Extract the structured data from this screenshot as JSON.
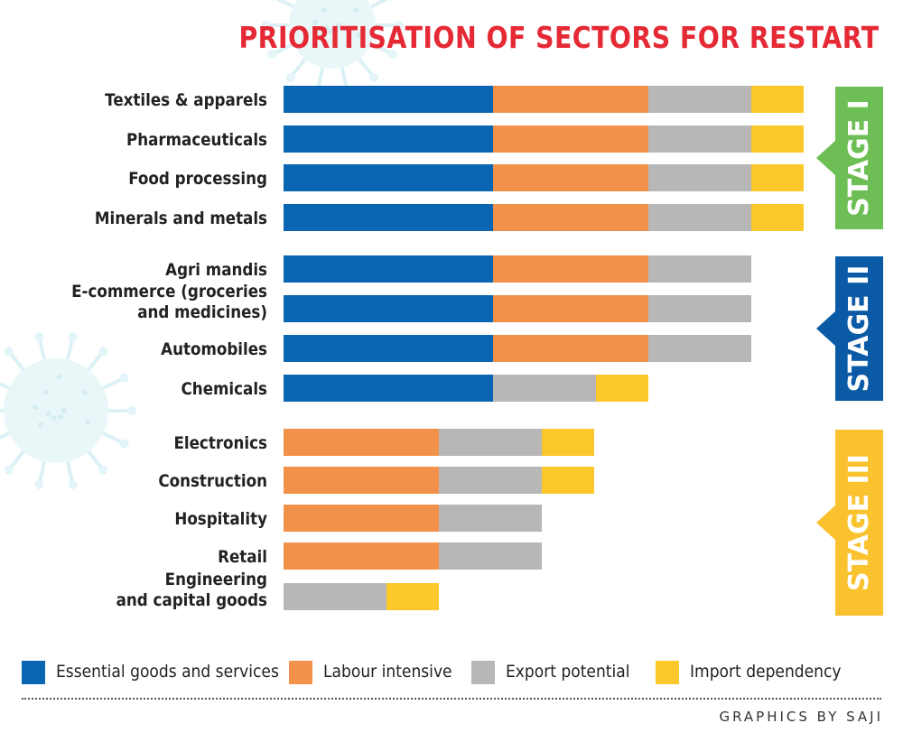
{
  "title": "PRIORITISATION OF SECTORS FOR RESTART",
  "credit": "GRAPHICS BY SAJI",
  "colors": {
    "essential": "#0a66b2",
    "labour": "#f2924a",
    "export": "#b7b7b7",
    "import": "#fcc82b",
    "title": "#e52a35",
    "stage1": "#6dbe54",
    "stage2": "#0b5aa6",
    "stage3": "#f9c22e"
  },
  "chart_data": {
    "type": "bar",
    "orientation": "horizontal",
    "stacked": true,
    "categories": [
      "Textiles & apparels",
      "Pharmaceuticals",
      "Food processing",
      "Minerals and metals",
      "Agri mandis",
      "E-commerce (groceries and medicines)",
      "Automobiles",
      "Chemicals",
      "Electronics",
      "Construction",
      "Hospitality",
      "Retail",
      "Engineering and capital goods"
    ],
    "series": [
      {
        "name": "Essential goods and services",
        "color": "#0a66b2",
        "values": [
          1,
          1,
          1,
          1,
          1,
          1,
          1,
          1,
          0,
          0,
          0,
          0,
          0
        ]
      },
      {
        "name": "Labour intensive",
        "color": "#f2924a",
        "values": [
          1,
          1,
          1,
          1,
          1,
          1,
          1,
          0,
          1,
          1,
          1,
          1,
          0
        ]
      },
      {
        "name": "Export potential",
        "color": "#b7b7b7",
        "values": [
          1,
          1,
          1,
          1,
          1,
          1,
          1,
          1,
          1,
          1,
          1,
          1,
          1
        ]
      },
      {
        "name": "Import dependency",
        "color": "#fcc82b",
        "values": [
          1,
          1,
          1,
          1,
          0,
          0,
          0,
          1,
          1,
          1,
          0,
          0,
          1
        ]
      }
    ],
    "stages": [
      {
        "label": "STAGE I",
        "color": "#6dbe54",
        "categories": [
          0,
          1,
          2,
          3
        ]
      },
      {
        "label": "STAGE II",
        "color": "#0b5aa6",
        "categories": [
          4,
          5,
          6,
          7
        ]
      },
      {
        "label": "STAGE III",
        "color": "#f9c22e",
        "categories": [
          8,
          9,
          10,
          11,
          12
        ]
      }
    ],
    "legend_position": "bottom",
    "grid": false
  }
}
